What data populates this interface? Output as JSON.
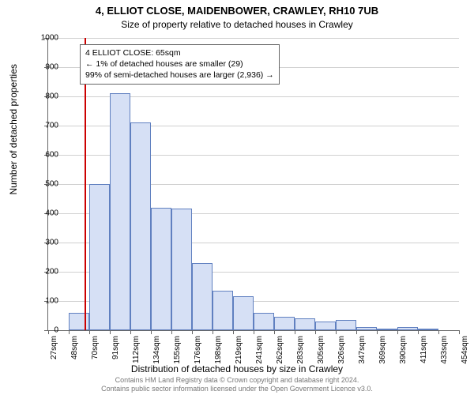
{
  "chart": {
    "type": "histogram",
    "title_line1": "4, ELLIOT CLOSE, MAIDENBOWER, CRAWLEY, RH10 7UB",
    "title_line2": "Size of property relative to detached houses in Crawley",
    "ylabel": "Number of detached properties",
    "xlabel": "Distribution of detached houses by size in Crawley",
    "ylim": [
      0,
      1000
    ],
    "ytick_step": 100,
    "background_color": "#ffffff",
    "grid_color": "#d0d0d0",
    "axis_color": "#666666",
    "bar_fill": "#d6e0f5",
    "bar_border": "#6080c0",
    "marker_color": "#cc0000",
    "marker_x_sqm": 65,
    "x_ticks": [
      "27sqm",
      "48sqm",
      "70sqm",
      "91sqm",
      "112sqm",
      "134sqm",
      "155sqm",
      "176sqm",
      "198sqm",
      "219sqm",
      "241sqm",
      "262sqm",
      "283sqm",
      "305sqm",
      "326sqm",
      "347sqm",
      "369sqm",
      "390sqm",
      "411sqm",
      "433sqm",
      "454sqm"
    ],
    "bars": [
      0,
      60,
      500,
      810,
      710,
      420,
      415,
      230,
      135,
      115,
      60,
      45,
      40,
      30,
      35,
      10,
      5,
      10,
      5,
      0
    ],
    "info_box": {
      "line1": "4 ELLIOT CLOSE: 65sqm",
      "line2": "← 1% of detached houses are smaller (29)",
      "line3": "99% of semi-detached houses are larger (2,936) →"
    },
    "footer_line1": "Contains HM Land Registry data © Crown copyright and database right 2024.",
    "footer_line2": "Contains public sector information licensed under the Open Government Licence v3.0.",
    "title_fontsize": 13,
    "subtitle_fontsize": 12,
    "label_fontsize": 12,
    "tick_fontsize": 10,
    "info_fontsize": 10.5,
    "footer_fontsize": 9,
    "footer_color": "#777777"
  }
}
